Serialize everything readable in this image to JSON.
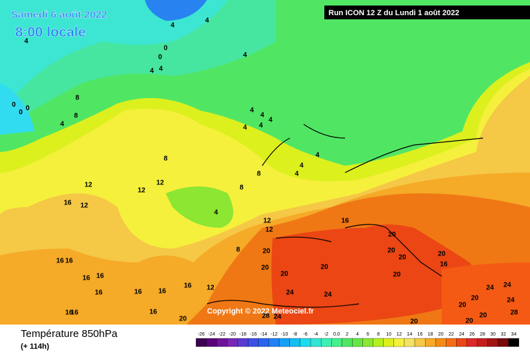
{
  "header": {
    "date": "Samedi 6 août 2022",
    "time": "8:00 locale",
    "run": "Run ICON 12 Z du Lundi 1 août 2022"
  },
  "copyright": "Copyright © 2022 Meteociel.fr",
  "footer": {
    "title": "Température 850hPa",
    "subtitle": "(+ 114h)"
  },
  "legend": {
    "labels": [
      "-26",
      "-24",
      "-22",
      "-20",
      "-18",
      "-16",
      "-14",
      "-12",
      "-10",
      "-8",
      "-6",
      "-4",
      "-2",
      "0.0",
      "2",
      "4",
      "6",
      "8",
      "10",
      "12",
      "14",
      "16",
      "18",
      "20",
      "22",
      "24",
      "26",
      "28",
      "30",
      "32",
      "34"
    ],
    "colors": [
      "#3c0050",
      "#5a0078",
      "#6e1496",
      "#7828b4",
      "#5a3cd2",
      "#3c50e6",
      "#2864f0",
      "#1e82f5",
      "#14a0f5",
      "#14bef0",
      "#1edcf0",
      "#32e6d2",
      "#3cf0b4",
      "#46f08c",
      "#50e664",
      "#64e646",
      "#8ce632",
      "#b4f01e",
      "#dcf01e",
      "#f5f03c",
      "#f5e164",
      "#f5c846",
      "#f5aa28",
      "#f58c14",
      "#f56e14",
      "#eb4614",
      "#dc2828",
      "#c31e1e",
      "#a01414",
      "#780a0a",
      "#000000"
    ]
  },
  "map": {
    "contour_labels": [
      4,
      4,
      0,
      0,
      4,
      4,
      4,
      4,
      0,
      0,
      0,
      8,
      8,
      4,
      4,
      4,
      4,
      4,
      4,
      4,
      4,
      4,
      8,
      8,
      8,
      12,
      12,
      12,
      12,
      16,
      4,
      12,
      12,
      16,
      20,
      20,
      8,
      20,
      20,
      20,
      20,
      20,
      20,
      20,
      16,
      16,
      16,
      16,
      16,
      16,
      16,
      16,
      16,
      12,
      24,
      24,
      24,
      24,
      24,
      20,
      20,
      20,
      20,
      28,
      20,
      20,
      28,
      24,
      16,
      16,
      16
    ]
  }
}
